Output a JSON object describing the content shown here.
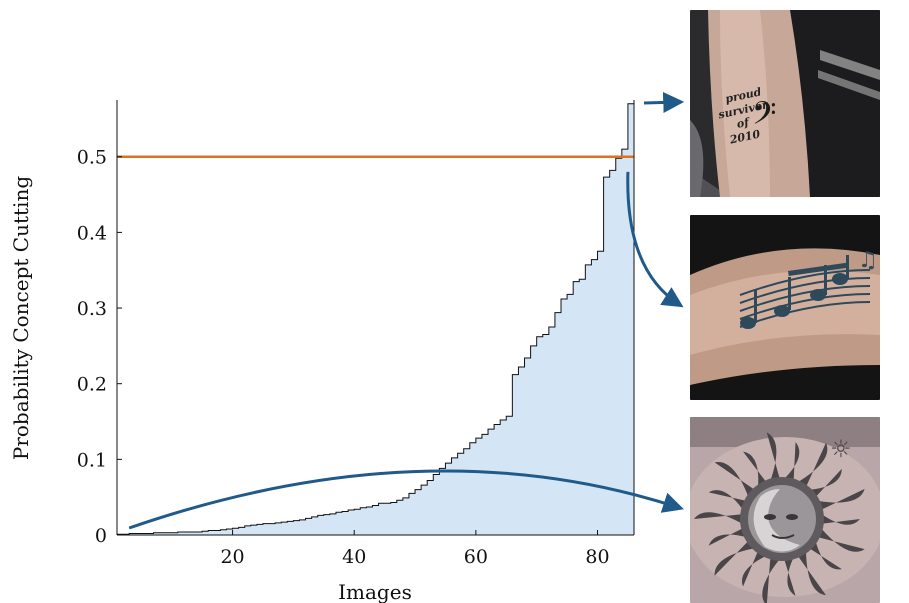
{
  "chart_data": {
    "type": "area",
    "subtype": "step",
    "xlabel": "Images",
    "ylabel": "Probability Concept Cutting",
    "xlim": [
      1,
      86
    ],
    "ylim": [
      0,
      0.575
    ],
    "xticks": [
      20,
      40,
      60,
      80
    ],
    "yticks": [
      0,
      0.1,
      0.2,
      0.3,
      0.4,
      0.5
    ],
    "ytick_labels": [
      "0",
      "0.1",
      "0.2",
      "0.3",
      "0.4",
      "0.5"
    ],
    "grid": false,
    "threshold": {
      "y": 0.5,
      "color": "#e07020"
    },
    "fill_color": "#d4e6f5",
    "arrow_color": "#1f5a8a",
    "series": [
      {
        "x": [
          1,
          2,
          3,
          4,
          5,
          6,
          7,
          8,
          9,
          10,
          11,
          12,
          13,
          14,
          15,
          16,
          17,
          18,
          19,
          20,
          21,
          22,
          23,
          24,
          25,
          26,
          27,
          28,
          29,
          30,
          31,
          32,
          33,
          34,
          35,
          36,
          37,
          38,
          39,
          40,
          41,
          42,
          43,
          44,
          45,
          46,
          47,
          48,
          49,
          50,
          51,
          52,
          53,
          54,
          55,
          56,
          57,
          58,
          59,
          60,
          61,
          62,
          63,
          64,
          65,
          66,
          67,
          68,
          69,
          70,
          71,
          72,
          73,
          74,
          75,
          76,
          77,
          78,
          79,
          80,
          81,
          82,
          83,
          84,
          85,
          86
        ],
        "y": [
          0.001,
          0.001,
          0.002,
          0.002,
          0.002,
          0.002,
          0.003,
          0.003,
          0.003,
          0.003,
          0.004,
          0.004,
          0.004,
          0.004,
          0.005,
          0.006,
          0.006,
          0.007,
          0.008,
          0.009,
          0.01,
          0.012,
          0.013,
          0.014,
          0.015,
          0.015,
          0.016,
          0.017,
          0.018,
          0.019,
          0.02,
          0.022,
          0.024,
          0.026,
          0.027,
          0.028,
          0.03,
          0.031,
          0.033,
          0.034,
          0.036,
          0.037,
          0.039,
          0.042,
          0.042,
          0.043,
          0.046,
          0.049,
          0.055,
          0.06,
          0.066,
          0.072,
          0.08,
          0.088,
          0.095,
          0.102,
          0.108,
          0.114,
          0.122,
          0.128,
          0.133,
          0.14,
          0.146,
          0.152,
          0.157,
          0.212,
          0.222,
          0.234,
          0.25,
          0.262,
          0.265,
          0.275,
          0.294,
          0.312,
          0.318,
          0.335,
          0.338,
          0.357,
          0.364,
          0.375,
          0.473,
          0.482,
          0.498,
          0.51,
          0.57,
          0.57
        ]
      }
    ]
  },
  "thumbnails": [
    {
      "inscription_lines": [
        "proud",
        "survivor",
        "of",
        "2010"
      ],
      "note_symbol": "𝄢"
    },
    {
      "note_symbol": "♫"
    },
    {
      "note_symbol": "☼"
    }
  ]
}
